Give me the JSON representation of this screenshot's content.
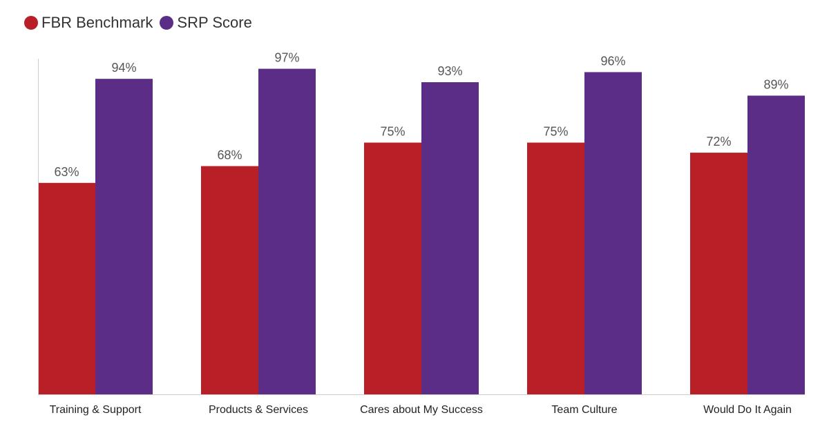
{
  "legend": {
    "items": [
      {
        "label": "FBR Benchmark",
        "color": "#b91f26"
      },
      {
        "label": "SRP Score",
        "color": "#5b2d86"
      }
    ]
  },
  "chart_data": {
    "type": "bar",
    "title": "",
    "xlabel": "",
    "ylabel": "",
    "ylim": [
      0,
      100
    ],
    "grid": false,
    "legend_position": "top-left",
    "value_suffix": "%",
    "categories": [
      "Training & Support",
      "Products & Services",
      "Cares about My Success",
      "Team Culture",
      "Would Do It Again"
    ],
    "series": [
      {
        "name": "FBR Benchmark",
        "color": "#b91f26",
        "values": [
          63,
          68,
          75,
          75,
          72
        ]
      },
      {
        "name": "SRP Score",
        "color": "#5b2d86",
        "values": [
          94,
          97,
          93,
          96,
          89
        ]
      }
    ]
  }
}
